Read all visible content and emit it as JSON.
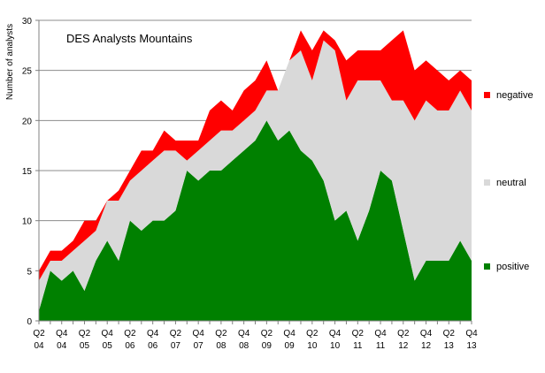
{
  "chart_data": {
    "type": "area",
    "stacked": true,
    "title": "DES Analysts Mountains",
    "ylabel": "Number of analysts",
    "xlabel": "",
    "ylim": [
      0,
      30
    ],
    "yticks": [
      0,
      5,
      10,
      15,
      20,
      25,
      30
    ],
    "grid": true,
    "legend_placement": "right",
    "x": [
      "Q2 04",
      "Q3 04",
      "Q4 04",
      "Q1 05",
      "Q2 05",
      "Q3 05",
      "Q4 05",
      "Q1 06",
      "Q2 06",
      "Q3 06",
      "Q4 06",
      "Q1 07",
      "Q2 07",
      "Q3 07",
      "Q4 07",
      "Q1 08",
      "Q2 08",
      "Q3 08",
      "Q4 08",
      "Q1 09",
      "Q2 09",
      "Q3 09",
      "Q4 09",
      "Q1 10",
      "Q2 10",
      "Q3 10",
      "Q4 10",
      "Q1 11",
      "Q2 11",
      "Q3 11",
      "Q4 11",
      "Q1 12",
      "Q2 12",
      "Q3 12",
      "Q4 12",
      "Q1 13",
      "Q2 13",
      "Q3 13",
      "Q4 13"
    ],
    "tick_labels": [
      {
        "index": 0,
        "line1": "Q2",
        "line2": "04"
      },
      {
        "index": 2,
        "line1": "Q4",
        "line2": "04"
      },
      {
        "index": 4,
        "line1": "Q2",
        "line2": "05"
      },
      {
        "index": 6,
        "line1": "Q4",
        "line2": "05"
      },
      {
        "index": 8,
        "line1": "Q2",
        "line2": "06"
      },
      {
        "index": 10,
        "line1": "Q4",
        "line2": "06"
      },
      {
        "index": 12,
        "line1": "Q2",
        "line2": "07"
      },
      {
        "index": 14,
        "line1": "Q4",
        "line2": "07"
      },
      {
        "index": 16,
        "line1": "Q2",
        "line2": "08"
      },
      {
        "index": 18,
        "line1": "Q4",
        "line2": "08"
      },
      {
        "index": 20,
        "line1": "Q2",
        "line2": "09"
      },
      {
        "index": 22,
        "line1": "Q4",
        "line2": "09"
      },
      {
        "index": 24,
        "line1": "Q2",
        "line2": "10"
      },
      {
        "index": 26,
        "line1": "Q4",
        "line2": "10"
      },
      {
        "index": 28,
        "line1": "Q2",
        "line2": "11"
      },
      {
        "index": 30,
        "line1": "Q4",
        "line2": "11"
      },
      {
        "index": 32,
        "line1": "Q2",
        "line2": "12"
      },
      {
        "index": 34,
        "line1": "Q4",
        "line2": "12"
      },
      {
        "index": 36,
        "line1": "Q2",
        "line2": "13"
      },
      {
        "index": 38,
        "line1": "Q4",
        "line2": "13"
      }
    ],
    "series": [
      {
        "name": "positive",
        "color": "#008000",
        "values": [
          1,
          5,
          4,
          5,
          3,
          6,
          8,
          6,
          10,
          9,
          10,
          10,
          11,
          15,
          14,
          15,
          15,
          16,
          17,
          18,
          20,
          18,
          19,
          17,
          16,
          14,
          10,
          11,
          8,
          11,
          15,
          14,
          9,
          4,
          6,
          6,
          6,
          8,
          6
        ]
      },
      {
        "name": "neutral",
        "color": "#d9d9d9",
        "values": [
          3,
          1,
          2,
          2,
          5,
          3,
          4,
          6,
          4,
          6,
          6,
          7,
          6,
          1,
          3,
          3,
          4,
          3,
          3,
          3,
          3,
          5,
          7,
          10,
          8,
          14,
          17,
          11,
          16,
          13,
          9,
          8,
          13,
          16,
          16,
          15,
          15,
          15,
          15
        ]
      },
      {
        "name": "negative",
        "color": "#ff0000",
        "values": [
          1,
          1,
          1,
          1,
          2,
          1,
          0,
          1,
          1,
          2,
          1,
          2,
          1,
          2,
          1,
          3,
          3,
          2,
          3,
          3,
          3,
          0,
          0,
          2,
          3,
          1,
          1,
          4,
          3,
          3,
          3,
          6,
          7,
          5,
          4,
          4,
          3,
          2,
          3
        ]
      }
    ]
  }
}
